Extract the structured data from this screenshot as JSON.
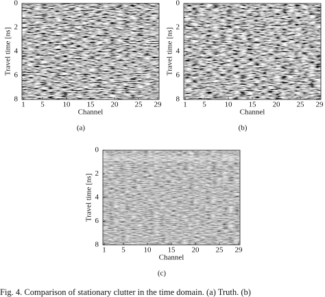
{
  "figure": {
    "panels": [
      {
        "label": "(a)",
        "ylabel": "Travel time [ns]",
        "yticks": [
          0,
          2,
          4,
          6,
          8
        ],
        "xlabel": "Channel",
        "xticks": [
          1,
          5,
          10,
          15,
          20,
          25,
          29
        ]
      },
      {
        "label": "(b)",
        "ylabel": "Travel time [ns]",
        "yticks": [
          0,
          2,
          4,
          6,
          8
        ],
        "xlabel": "Channel",
        "xticks": [
          1,
          5,
          10,
          15,
          20,
          25,
          29
        ]
      },
      {
        "label": "(c)",
        "ylabel": "Travel time [ns]",
        "yticks": [
          0,
          2,
          4,
          6,
          8
        ],
        "xlabel": "Channel",
        "xticks": [
          1,
          5,
          10,
          15,
          20,
          25,
          29
        ]
      }
    ],
    "caption": "Fig. 4.  Comparison of stationary clutter in the time domain. (a) Truth. (b)"
  }
}
